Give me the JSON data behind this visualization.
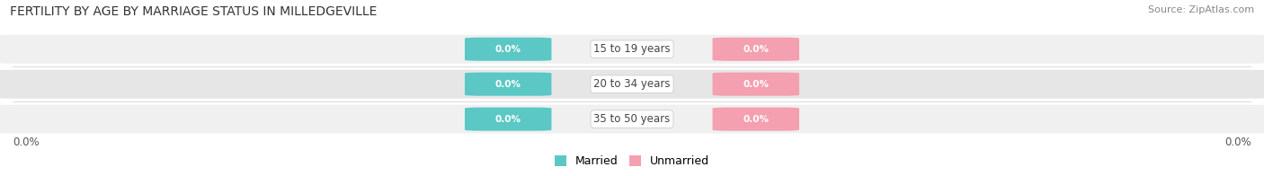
{
  "title": "FERTILITY BY AGE BY MARRIAGE STATUS IN MILLEDGEVILLE",
  "source": "Source: ZipAtlas.com",
  "categories": [
    "15 to 19 years",
    "20 to 34 years",
    "35 to 50 years"
  ],
  "married_values": [
    0.0,
    0.0,
    0.0
  ],
  "unmarried_values": [
    0.0,
    0.0,
    0.0
  ],
  "married_color": "#5bc8c5",
  "unmarried_color": "#f4a0b0",
  "married_label": "Married",
  "unmarried_label": "Unmarried",
  "row_bg_color_odd": "#f0f0f0",
  "row_bg_color_even": "#e6e6e6",
  "title_fontsize": 10,
  "source_fontsize": 8,
  "axis_label": "0.0%",
  "background_color": "#ffffff",
  "center_label_color": "#444444",
  "pill_text_color": "#ffffff"
}
